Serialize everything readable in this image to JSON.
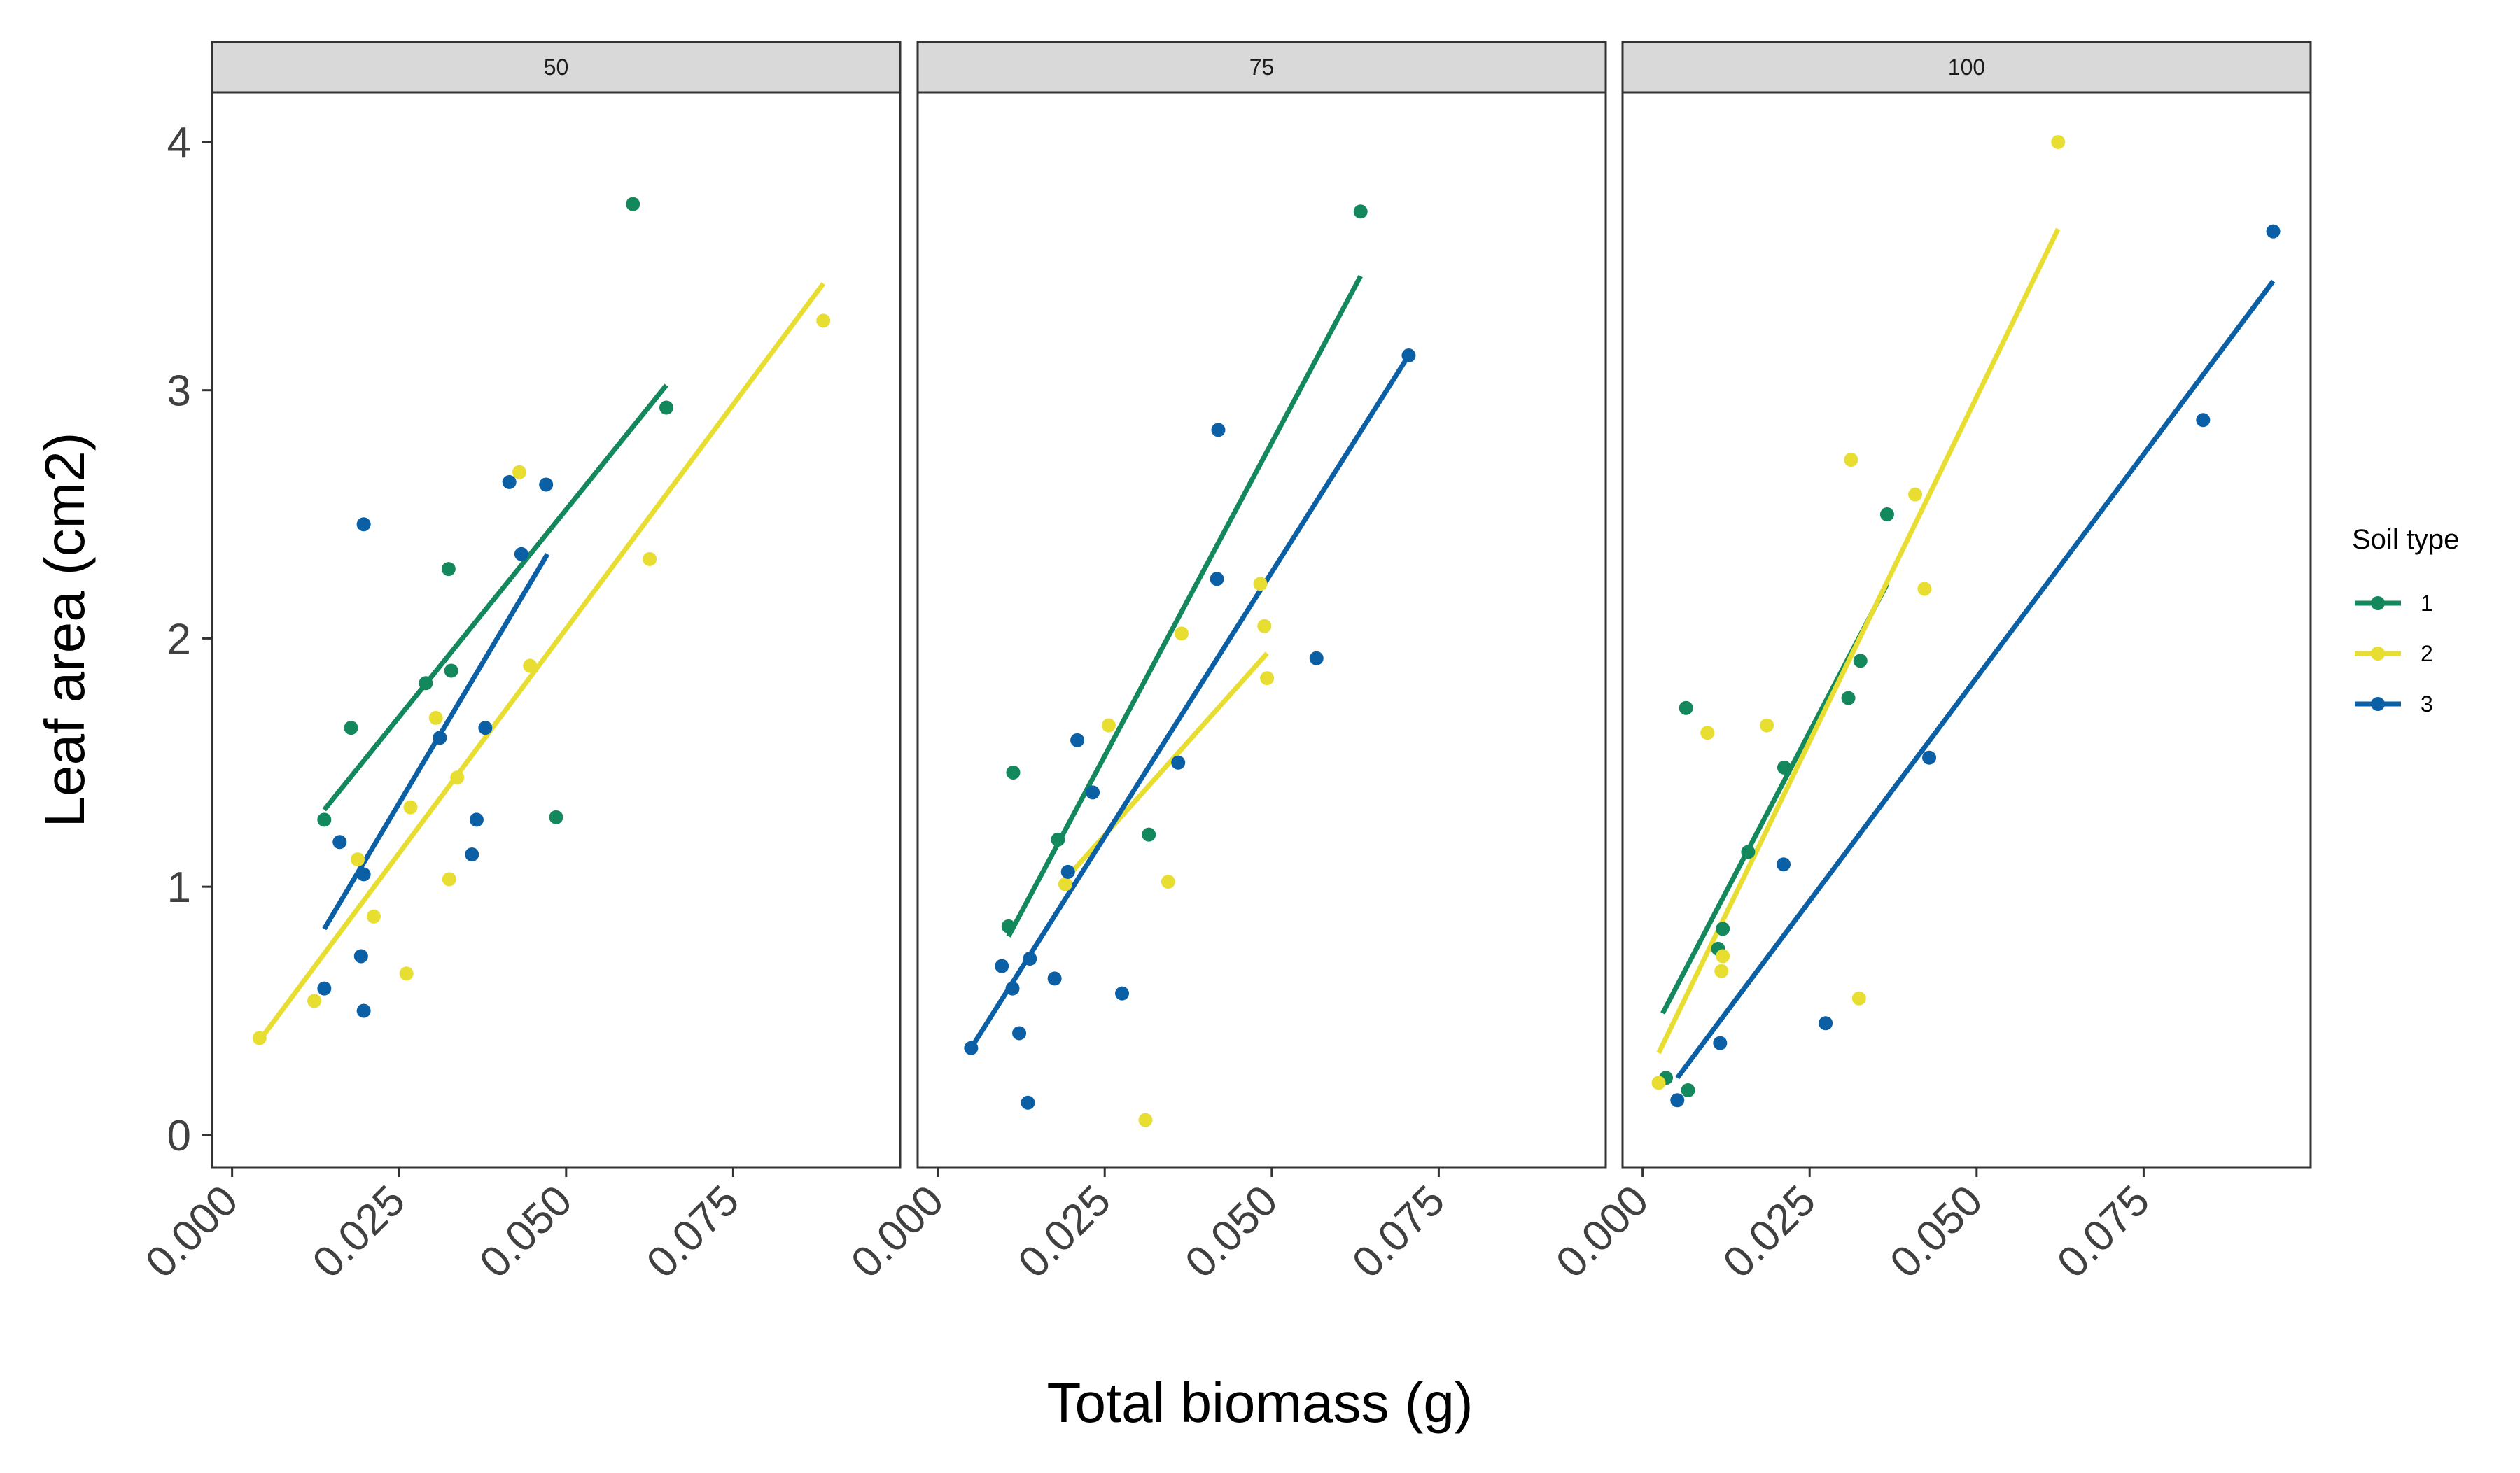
{
  "chart_data": {
    "type": "scatter",
    "xlabel": "Total biomass (g)",
    "ylabel": "Leaf area (cm2)",
    "xlim": [
      -0.003,
      0.1
    ],
    "ylim": [
      -0.13,
      4.2
    ],
    "xticks": [
      "0.000",
      "0.025",
      "0.050",
      "0.075"
    ],
    "yticks": [
      "0",
      "1",
      "2",
      "3",
      "4"
    ],
    "grid": false,
    "legend": {
      "title": "Soil type",
      "placement": "right",
      "entries": [
        "1",
        "2",
        "3"
      ]
    },
    "colors": {
      "1": "#13885c",
      "2": "#e8de32",
      "3": "#0b5fa5"
    },
    "panels": [
      {
        "label": "50",
        "series": [
          {
            "name": "1",
            "points": [
              [
                0.0138,
                1.27
              ],
              [
                0.0178,
                1.64
              ],
              [
                0.029,
                1.82
              ],
              [
                0.0324,
                2.28
              ],
              [
                0.0328,
                1.87
              ],
              [
                0.0485,
                1.28
              ],
              [
                0.06,
                3.75
              ],
              [
                0.065,
                2.93
              ]
            ],
            "fit": [
              [
                0.0138,
                1.31
              ],
              [
                0.065,
                3.02
              ]
            ]
          },
          {
            "name": "2",
            "points": [
              [
                0.0041,
                0.39
              ],
              [
                0.0123,
                0.54
              ],
              [
                0.0188,
                1.11
              ],
              [
                0.0212,
                0.88
              ],
              [
                0.0261,
                0.65
              ],
              [
                0.0267,
                1.32
              ],
              [
                0.0305,
                1.68
              ],
              [
                0.0325,
                1.03
              ],
              [
                0.0337,
                1.44
              ],
              [
                0.043,
                2.67
              ],
              [
                0.0446,
                1.89
              ],
              [
                0.0625,
                2.32
              ],
              [
                0.0885,
                3.28
              ]
            ],
            "fit": [
              [
                0.0041,
                0.38
              ],
              [
                0.0885,
                3.43
              ]
            ]
          },
          {
            "name": "3",
            "points": [
              [
                0.0138,
                0.59
              ],
              [
                0.0161,
                1.18
              ],
              [
                0.0193,
                0.72
              ],
              [
                0.0197,
                0.5
              ],
              [
                0.0197,
                2.46
              ],
              [
                0.0197,
                1.05
              ],
              [
                0.0311,
                1.6
              ],
              [
                0.0359,
                1.13
              ],
              [
                0.0366,
                1.27
              ],
              [
                0.0379,
                1.64
              ],
              [
                0.0415,
                2.63
              ],
              [
                0.0433,
                2.34
              ],
              [
                0.047,
                2.62
              ]
            ],
            "fit": [
              [
                0.0138,
                0.83
              ],
              [
                0.0472,
                2.34
              ]
            ]
          }
        ]
      },
      {
        "label": "75",
        "series": [
          {
            "name": "1",
            "points": [
              [
                0.0106,
                0.84
              ],
              [
                0.0113,
                1.46
              ],
              [
                0.018,
                1.19
              ],
              [
                0.0316,
                1.21
              ],
              [
                0.0633,
                3.72
              ]
            ],
            "fit": [
              [
                0.0106,
                0.8
              ],
              [
                0.0633,
                3.46
              ]
            ]
          },
          {
            "name": "2",
            "points": [
              [
                0.0191,
                1.01
              ],
              [
                0.0256,
                1.65
              ],
              [
                0.0311,
                0.06
              ],
              [
                0.0345,
                1.02
              ],
              [
                0.0365,
                2.02
              ],
              [
                0.0483,
                2.22
              ],
              [
                0.0489,
                2.05
              ],
              [
                0.0493,
                1.84
              ]
            ],
            "fit": [
              [
                0.0191,
                1.03
              ],
              [
                0.0493,
                1.94
              ]
            ]
          },
          {
            "name": "3",
            "points": [
              [
                0.005,
                0.35
              ],
              [
                0.0096,
                0.68
              ],
              [
                0.0112,
                0.59
              ],
              [
                0.0122,
                0.41
              ],
              [
                0.0135,
                0.13
              ],
              [
                0.0138,
                0.71
              ],
              [
                0.0175,
                0.63
              ],
              [
                0.0195,
                1.06
              ],
              [
                0.0209,
                1.59
              ],
              [
                0.0232,
                1.38
              ],
              [
                0.0276,
                0.57
              ],
              [
                0.036,
                1.5
              ],
              [
                0.042,
                2.84
              ],
              [
                0.0418,
                2.24
              ],
              [
                0.0567,
                1.92
              ],
              [
                0.0705,
                3.14
              ]
            ],
            "fit": [
              [
                0.005,
                0.35
              ],
              [
                0.0705,
                3.14
              ]
            ]
          }
        ]
      },
      {
        "label": "100",
        "series": [
          {
            "name": "1",
            "points": [
              [
                0.0035,
                0.23
              ],
              [
                0.0065,
                1.72
              ],
              [
                0.0068,
                0.18
              ],
              [
                0.0113,
                0.75
              ],
              [
                0.012,
                0.83
              ],
              [
                0.0158,
                1.14
              ],
              [
                0.0212,
                1.48
              ],
              [
                0.0308,
                1.76
              ],
              [
                0.0326,
                1.91
              ],
              [
                0.0366,
                2.5
              ]
            ],
            "fit": [
              [
                0.003,
                0.49
              ],
              [
                0.0366,
                2.22
              ]
            ]
          },
          {
            "name": "2",
            "points": [
              [
                0.0024,
                0.21
              ],
              [
                0.0097,
                1.62
              ],
              [
                0.0118,
                0.66
              ],
              [
                0.012,
                0.72
              ],
              [
                0.0186,
                1.65
              ],
              [
                0.0312,
                2.72
              ],
              [
                0.0324,
                0.55
              ],
              [
                0.0408,
                2.58
              ],
              [
                0.0422,
                2.2
              ],
              [
                0.0622,
                4.0
              ]
            ],
            "fit": [
              [
                0.0024,
                0.33
              ],
              [
                0.0622,
                3.65
              ]
            ]
          },
          {
            "name": "3",
            "points": [
              [
                0.0052,
                0.14
              ],
              [
                0.0116,
                0.37
              ],
              [
                0.0211,
                1.09
              ],
              [
                0.0274,
                0.45
              ],
              [
                0.0429,
                1.52
              ],
              [
                0.0839,
                2.88
              ],
              [
                0.0944,
                3.64
              ]
            ],
            "fit": [
              [
                0.0052,
                0.23
              ],
              [
                0.0944,
                3.44
              ]
            ]
          }
        ]
      }
    ]
  }
}
